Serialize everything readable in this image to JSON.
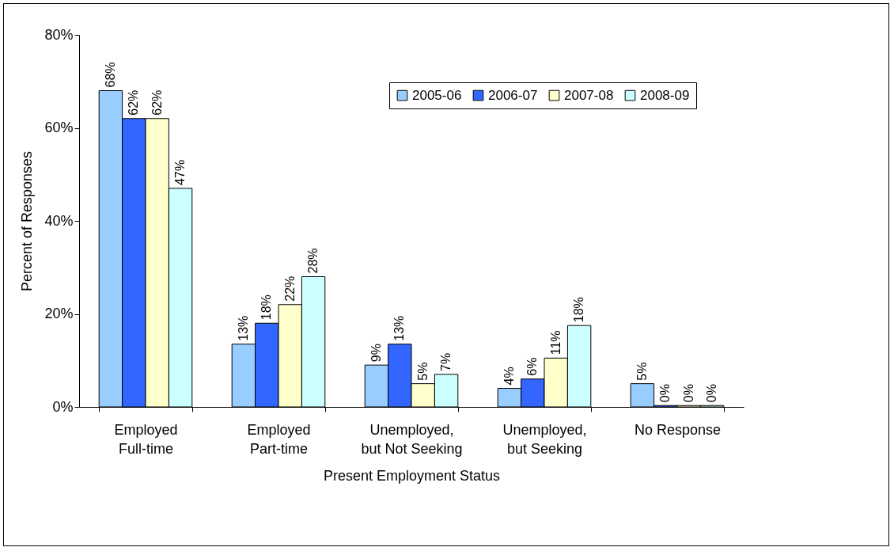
{
  "chart_data": {
    "type": "bar",
    "xlabel": "Present Employment Status",
    "ylabel": "Percent of Responses",
    "categories": [
      "Employed\nFull-time",
      "Employed\nPart-time",
      "Unemployed,\nbut Not Seeking",
      "Unemployed,\nbut Seeking",
      "No Response"
    ],
    "series": [
      {
        "name": "2005-06",
        "color": "#99ccff",
        "values": [
          68,
          13.5,
          9,
          4,
          5
        ],
        "value_labels": [
          "68%",
          "13%",
          "9%",
          "4%",
          "5%"
        ]
      },
      {
        "name": "2006-07",
        "color": "#3366ff",
        "values": [
          62,
          18,
          13.5,
          6,
          0.3
        ],
        "value_labels": [
          "62%",
          "18%",
          "13%",
          "6%",
          "0%"
        ]
      },
      {
        "name": "2007-08",
        "color": "#ffffcc",
        "values": [
          62,
          22,
          5,
          10.5,
          0.3
        ],
        "value_labels": [
          "62%",
          "22%",
          "5%",
          "11%",
          "0%"
        ]
      },
      {
        "name": "2008-09",
        "color": "#ccffff",
        "values": [
          47,
          28,
          7,
          17.5,
          0.3
        ],
        "value_labels": [
          "47%",
          "28%",
          "7%",
          "18%",
          "0%"
        ]
      }
    ],
    "ylim": [
      0,
      80
    ],
    "yticks": [
      {
        "value": 0,
        "label": "0%"
      },
      {
        "value": 20,
        "label": "20%"
      },
      {
        "value": 40,
        "label": "40%"
      },
      {
        "value": 60,
        "label": "60%"
      },
      {
        "value": 80,
        "label": "80%"
      }
    ],
    "grid": false,
    "legend": "top right"
  }
}
